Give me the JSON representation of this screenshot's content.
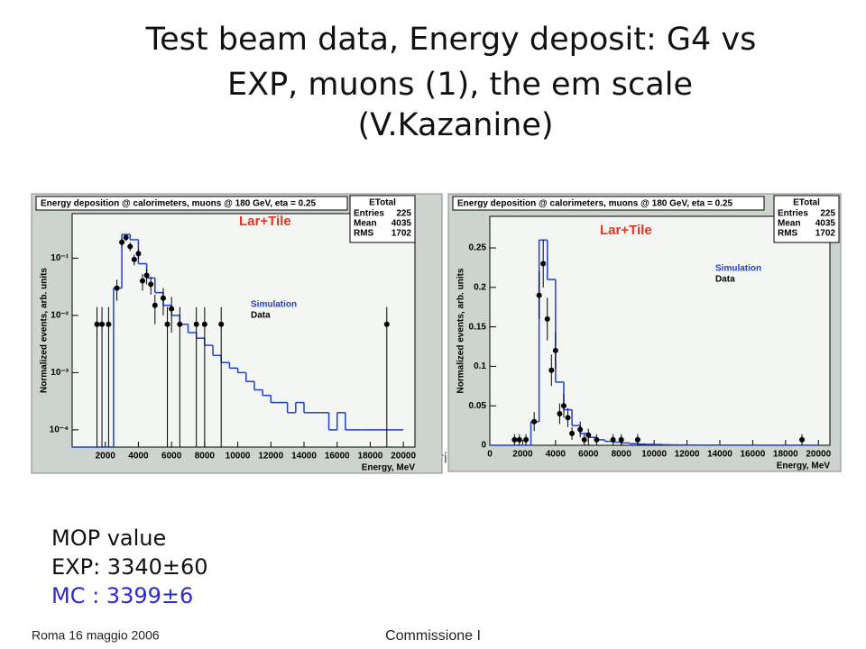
{
  "title_lines": [
    "Test beam data,  Energy deposit: G4 vs",
    "EXP, muons (1), the em scale",
    "(V.Kazanine)"
  ],
  "fragment": "ri",
  "mop": {
    "heading": "MOP value",
    "exp": "EXP: 3340±60",
    "mc": "MC : 3399±6"
  },
  "footer": {
    "left": "Roma 16 maggio 2006",
    "center": "Commissione I"
  },
  "chart_data": [
    {
      "type": "histogram",
      "title": "Energy deposition @ calorimeters, muons @ 180 GeV, eta = 0.25",
      "label": "Lar+Tile",
      "xlabel": "Energy, MeV",
      "ylabel": "Normalized events, arb. units",
      "stats": {
        "title": "ETotal",
        "rows": [
          {
            "label": "Entries",
            "value": 225
          },
          {
            "label": "Mean",
            "value": 4035
          },
          {
            "label": "RMS",
            "value": 1702
          }
        ]
      },
      "log_y": true,
      "xlim": [
        0,
        20700
      ],
      "ylim": [
        5e-05,
        0.6
      ],
      "xticks": [
        2000,
        4000,
        6000,
        8000,
        10000,
        12000,
        14000,
        16000,
        18000,
        20000
      ],
      "yticks": [
        {
          "value": 0.0001,
          "label": "10⁻⁴"
        },
        {
          "value": 0.001,
          "label": "10⁻³"
        },
        {
          "value": 0.01,
          "label": "10⁻²"
        },
        {
          "value": 0.1,
          "label": "10⁻¹"
        }
      ],
      "bins": [
        0,
        500,
        1000,
        1500,
        2000,
        2500,
        3000,
        3500,
        4000,
        4500,
        5000,
        5500,
        6000,
        6500,
        7000,
        7500,
        8000,
        8500,
        9000,
        9500,
        10000,
        10500,
        11000,
        11500,
        12000,
        12500,
        13000,
        13500,
        14000,
        14500,
        15000,
        15500,
        16000,
        16500,
        17000,
        17500,
        18000,
        18500,
        19000,
        19500,
        20000
      ],
      "series": [
        {
          "name": "Simulation",
          "color": "#1f3fd0",
          "values": [
            0,
            0,
            0,
            0,
            0,
            0.03,
            0.26,
            0.21,
            0.08,
            0.045,
            0.025,
            0.015,
            0.01,
            0.007,
            0.005,
            0.004,
            0.003,
            0.002,
            0.0015,
            0.0012,
            0.001,
            0.0007,
            0.0005,
            0.0004,
            0.0003,
            0.0003,
            0.0002,
            0.0003,
            0.0002,
            0.0002,
            0.0002,
            0.0001,
            0.0002,
            0.0001,
            0.0001,
            0.0001,
            0.0001,
            0.0001,
            0.0001,
            0.0001
          ]
        },
        {
          "name": "Data",
          "color": "#000000",
          "x": [
            1500,
            1800,
            2200,
            2700,
            3000,
            3250,
            3500,
            3750,
            4000,
            4250,
            4500,
            4750,
            5000,
            5500,
            5750,
            6000,
            6500,
            7500,
            8000,
            9000,
            19000
          ],
          "values": [
            0.007,
            0.007,
            0.007,
            0.03,
            0.19,
            0.23,
            0.16,
            0.095,
            0.12,
            0.04,
            0.05,
            0.035,
            0.015,
            0.02,
            0.007,
            0.013,
            0.007,
            0.007,
            0.007,
            0.007,
            0.007
          ],
          "errors": [
            0.007,
            0.007,
            0.007,
            0.012,
            0.03,
            0.03,
            0.027,
            0.02,
            0.023,
            0.013,
            0.015,
            0.012,
            0.008,
            0.01,
            0.007,
            0.008,
            0.007,
            0.007,
            0.007,
            0.007,
            0.007
          ]
        }
      ]
    },
    {
      "type": "histogram",
      "title": "Energy deposition @ calorimeters, muons @ 180 GeV, eta = 0.25",
      "label": "Lar+Tile",
      "xlabel": "Energy, MeV",
      "ylabel": "Normalized events, arb. units",
      "stats": {
        "title": "ETotal",
        "rows": [
          {
            "label": "Entries",
            "value": 225
          },
          {
            "label": "Mean",
            "value": 4035
          },
          {
            "label": "RMS",
            "value": 1702
          }
        ]
      },
      "log_y": false,
      "xlim": [
        0,
        20700
      ],
      "ylim": [
        0,
        0.29
      ],
      "xticks": [
        0,
        2000,
        4000,
        6000,
        8000,
        10000,
        12000,
        14000,
        16000,
        18000,
        20000
      ],
      "yticks": [
        0,
        0.05,
        0.1,
        0.15,
        0.2,
        0.25
      ],
      "bins": [
        0,
        500,
        1000,
        1500,
        2000,
        2500,
        3000,
        3500,
        4000,
        4500,
        5000,
        5500,
        6000,
        6500,
        7000,
        7500,
        8000,
        8500,
        9000,
        9500,
        10000,
        10500,
        11000,
        11500,
        12000,
        12500,
        13000,
        13500,
        14000,
        14500,
        15000,
        15500,
        16000,
        16500,
        17000,
        17500,
        18000,
        18500,
        19000,
        19500,
        20000
      ],
      "series": [
        {
          "name": "Simulation",
          "color": "#1f3fd0",
          "values": [
            0,
            0,
            0,
            0,
            0,
            0.03,
            0.26,
            0.21,
            0.08,
            0.045,
            0.025,
            0.015,
            0.01,
            0.007,
            0.005,
            0.004,
            0.003,
            0.002,
            0.0015,
            0.0012,
            0.001,
            0.0007,
            0.0005,
            0.0004,
            0.0003,
            0.0003,
            0.0002,
            0.0003,
            0.0002,
            0.0002,
            0.0002,
            0.0001,
            0.0002,
            0.0001,
            0.0001,
            0.0001,
            0.0001,
            0.0001,
            0.0001,
            0.0001
          ]
        },
        {
          "name": "Data",
          "color": "#000000",
          "x": [
            1500,
            1800,
            2200,
            2700,
            3000,
            3250,
            3500,
            3750,
            4000,
            4250,
            4500,
            4750,
            5000,
            5500,
            5750,
            6000,
            6500,
            7500,
            8000,
            9000,
            19000
          ],
          "values": [
            0.007,
            0.007,
            0.007,
            0.03,
            0.19,
            0.23,
            0.16,
            0.095,
            0.12,
            0.04,
            0.05,
            0.035,
            0.015,
            0.02,
            0.007,
            0.013,
            0.007,
            0.007,
            0.007,
            0.007,
            0.007
          ],
          "errors": [
            0.007,
            0.007,
            0.007,
            0.012,
            0.03,
            0.03,
            0.027,
            0.02,
            0.023,
            0.013,
            0.015,
            0.012,
            0.008,
            0.01,
            0.007,
            0.008,
            0.007,
            0.007,
            0.007,
            0.007,
            0.007
          ]
        }
      ]
    }
  ]
}
